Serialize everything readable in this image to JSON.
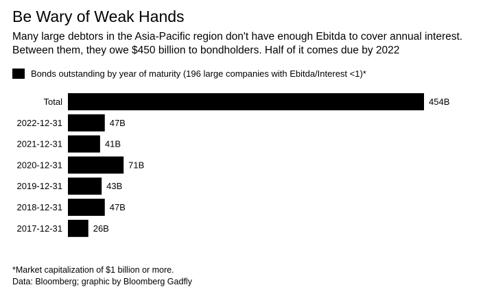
{
  "chart_data": {
    "type": "bar",
    "orientation": "horizontal",
    "title": "Be Wary of Weak Hands",
    "subtitle": "Many large debtors in the Asia-Pacific region don't have enough Ebitda to cover annual interest. Between them, they owe $450 billion to bondholders. Half of it comes due by 2022",
    "categories": [
      "Total",
      "2022-12-31",
      "2021-12-31",
      "2020-12-31",
      "2019-12-31",
      "2018-12-31",
      "2017-12-31"
    ],
    "series": [
      {
        "name": "Bonds outstanding by year of maturity (196 large companies with Ebitda/Interest <1)*",
        "values": [
          454,
          47,
          41,
          71,
          43,
          47,
          26
        ],
        "value_labels": [
          "454B",
          "47B",
          "41B",
          "71B",
          "43B",
          "47B",
          "26B"
        ],
        "color": "#000000"
      }
    ],
    "xlim": [
      0,
      454
    ],
    "grid": false,
    "legend_position": "top-left"
  },
  "footnote": "*Market capitalization of $1 billion or more.",
  "source": "Data: Bloomberg; graphic by Bloomberg Gadfly"
}
